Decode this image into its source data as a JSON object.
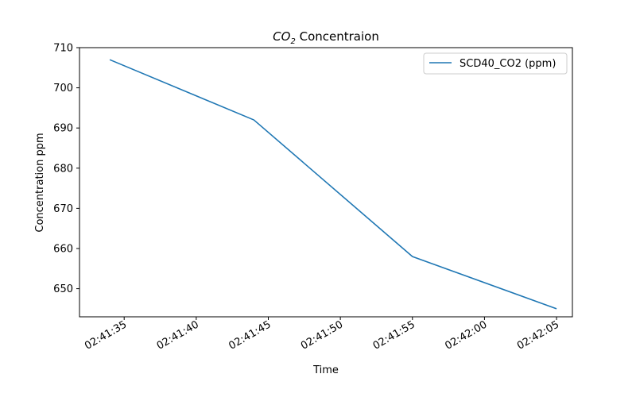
{
  "chart_data": {
    "type": "line",
    "title_main": "CO",
    "title_sub": "2",
    "title_rest": " Concentraion",
    "xlabel": "Time",
    "ylabel": "Concentration ppm",
    "x_ticks": [
      "02:41:35",
      "02:41:40",
      "02:41:45",
      "02:41:50",
      "02:41:55",
      "02:42:00",
      "02:42:05"
    ],
    "x_tick_seconds": [
      35,
      40,
      45,
      50,
      55,
      60,
      65
    ],
    "xlim_seconds": [
      31.9,
      66.1
    ],
    "y_ticks": [
      650,
      660,
      670,
      680,
      690,
      700,
      710
    ],
    "ylim": [
      643,
      710
    ],
    "grid": false,
    "legend_position": "top-right",
    "series": [
      {
        "name": "SCD40_CO2 (ppm)",
        "color": "#1f77b4",
        "x": [
          "02:41:34",
          "02:41:44",
          "02:41:55",
          "02:42:05"
        ],
        "x_seconds": [
          34,
          44,
          55,
          65
        ],
        "values": [
          707,
          692,
          658,
          645
        ]
      }
    ]
  }
}
